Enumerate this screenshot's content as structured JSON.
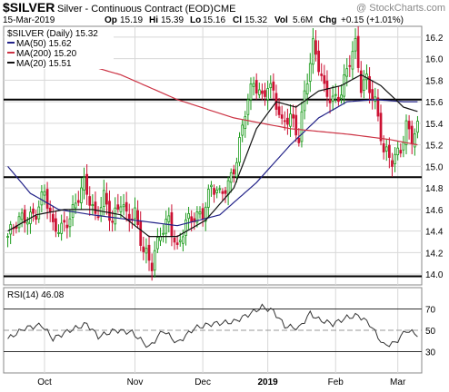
{
  "header": {
    "symbol": "$SILVER",
    "name": "Silver - Continuous Contract (EOD)",
    "exchange": "CME",
    "watermark": "@ StockCharts.com",
    "date": "15-Mar-2019",
    "quote": {
      "op_label": "Op",
      "op": "15.19",
      "hi_label": "Hi",
      "hi": "15.39",
      "lo_label": "Lo",
      "lo": "15.16",
      "cl_label": "Cl",
      "cl": "15.32",
      "vol_label": "Vol",
      "vol": "5.6M",
      "chg_label": "Chg",
      "chg": "+0.15 (+1.01%)"
    }
  },
  "legend": {
    "main": "$SILVER (Daily) 15.32",
    "ma50": "MA(50) 15.62",
    "ma200": "MA(200) 15.20",
    "ma20": "MA(20) 15.51"
  },
  "rsi_legend": "RSI(14) 46.08",
  "colors": {
    "up": "#1a9a1a",
    "down": "#cc1133",
    "ma50": "#222288",
    "ma200": "#cc3344",
    "ma20": "#111111",
    "rsi_line": "#333333",
    "grid": "#d8d8d8",
    "hline": "#000000"
  },
  "chart_data": [
    {
      "type": "candlestick",
      "title": "$SILVER Silver - Continuous Contract (EOD)",
      "x_labels": [
        "Oct",
        "Nov",
        "Dec",
        "2019",
        "Feb",
        "Mar"
      ],
      "y_ticks": [
        14.0,
        14.2,
        14.4,
        14.6,
        14.8,
        15.0,
        15.2,
        15.4,
        15.6,
        15.8,
        16.0,
        16.2
      ],
      "ylim": [
        13.9,
        16.3
      ],
      "grid": true,
      "horizontal_lines": [
        15.62,
        14.9,
        13.98
      ],
      "anchors": [
        {
          "d": 0,
          "v": 14.35
        },
        {
          "d": 5,
          "v": 14.5
        },
        {
          "d": 10,
          "v": 14.6
        },
        {
          "d": 13,
          "v": 14.75
        },
        {
          "d": 16,
          "v": 14.4
        },
        {
          "d": 19,
          "v": 14.45
        },
        {
          "d": 23,
          "v": 14.6
        },
        {
          "d": 27,
          "v": 14.8
        },
        {
          "d": 31,
          "v": 14.55
        },
        {
          "d": 34,
          "v": 14.75
        },
        {
          "d": 37,
          "v": 14.45
        },
        {
          "d": 40,
          "v": 14.65
        },
        {
          "d": 42,
          "v": 14.55
        },
        {
          "d": 45,
          "v": 14.6
        },
        {
          "d": 48,
          "v": 14.2
        },
        {
          "d": 51,
          "v": 14.05
        },
        {
          "d": 54,
          "v": 14.4
        },
        {
          "d": 57,
          "v": 14.55
        },
        {
          "d": 60,
          "v": 14.2
        },
        {
          "d": 63,
          "v": 14.45
        },
        {
          "d": 66,
          "v": 14.55
        },
        {
          "d": 69,
          "v": 14.6
        },
        {
          "d": 72,
          "v": 14.8
        },
        {
          "d": 75,
          "v": 14.7
        },
        {
          "d": 78,
          "v": 14.85
        },
        {
          "d": 81,
          "v": 15.1
        },
        {
          "d": 84,
          "v": 15.5
        },
        {
          "d": 87,
          "v": 15.75
        },
        {
          "d": 90,
          "v": 15.65
        },
        {
          "d": 92,
          "v": 15.8
        },
        {
          "d": 94,
          "v": 15.7
        },
        {
          "d": 97,
          "v": 15.35
        },
        {
          "d": 100,
          "v": 15.45
        },
        {
          "d": 103,
          "v": 15.3
        },
        {
          "d": 105,
          "v": 15.7
        },
        {
          "d": 108,
          "v": 16.1
        },
        {
          "d": 110,
          "v": 15.9
        },
        {
          "d": 112,
          "v": 15.7
        },
        {
          "d": 115,
          "v": 15.65
        },
        {
          "d": 118,
          "v": 15.7
        },
        {
          "d": 121,
          "v": 15.95
        },
        {
          "d": 123,
          "v": 16.1
        },
        {
          "d": 125,
          "v": 15.75
        },
        {
          "d": 127,
          "v": 15.85
        },
        {
          "d": 130,
          "v": 15.6
        },
        {
          "d": 133,
          "v": 15.1
        },
        {
          "d": 136,
          "v": 15.05
        },
        {
          "d": 139,
          "v": 15.2
        },
        {
          "d": 141,
          "v": 15.4
        },
        {
          "d": 143,
          "v": 15.25
        },
        {
          "d": 145,
          "v": 15.32
        }
      ],
      "series": [
        {
          "name": "MA(50) 15.62",
          "points": [
            {
              "d": 0,
              "v": 15.0
            },
            {
              "d": 8,
              "v": 14.75
            },
            {
              "d": 18,
              "v": 14.6
            },
            {
              "d": 30,
              "v": 14.55
            },
            {
              "d": 45,
              "v": 14.5
            },
            {
              "d": 60,
              "v": 14.45
            },
            {
              "d": 75,
              "v": 14.55
            },
            {
              "d": 88,
              "v": 14.85
            },
            {
              "d": 100,
              "v": 15.2
            },
            {
              "d": 110,
              "v": 15.45
            },
            {
              "d": 120,
              "v": 15.6
            },
            {
              "d": 130,
              "v": 15.62
            },
            {
              "d": 140,
              "v": 15.6
            },
            {
              "d": 145,
              "v": 15.6
            }
          ]
        },
        {
          "name": "MA(200) 15.20",
          "points": [
            {
              "d": 0,
              "v": 16.05
            },
            {
              "d": 20,
              "v": 16.0
            },
            {
              "d": 40,
              "v": 15.85
            },
            {
              "d": 60,
              "v": 15.62
            },
            {
              "d": 80,
              "v": 15.45
            },
            {
              "d": 100,
              "v": 15.35
            },
            {
              "d": 120,
              "v": 15.3
            },
            {
              "d": 135,
              "v": 15.25
            },
            {
              "d": 145,
              "v": 15.2
            }
          ]
        },
        {
          "name": "MA(20) 15.51",
          "points": [
            {
              "d": 0,
              "v": 14.4
            },
            {
              "d": 10,
              "v": 14.55
            },
            {
              "d": 20,
              "v": 14.6
            },
            {
              "d": 30,
              "v": 14.6
            },
            {
              "d": 40,
              "v": 14.55
            },
            {
              "d": 50,
              "v": 14.35
            },
            {
              "d": 60,
              "v": 14.35
            },
            {
              "d": 70,
              "v": 14.5
            },
            {
              "d": 80,
              "v": 14.8
            },
            {
              "d": 88,
              "v": 15.35
            },
            {
              "d": 95,
              "v": 15.6
            },
            {
              "d": 102,
              "v": 15.55
            },
            {
              "d": 110,
              "v": 15.7
            },
            {
              "d": 118,
              "v": 15.75
            },
            {
              "d": 125,
              "v": 15.85
            },
            {
              "d": 132,
              "v": 15.75
            },
            {
              "d": 140,
              "v": 15.55
            },
            {
              "d": 145,
              "v": 15.51
            }
          ]
        }
      ]
    },
    {
      "type": "line",
      "title": "RSI(14) 46.08",
      "x_labels": [
        "Oct",
        "Nov",
        "Dec",
        "2019",
        "Feb",
        "Mar"
      ],
      "y_ticks": [
        30,
        50,
        70
      ],
      "ylim": [
        10,
        90
      ],
      "reference_lines": [
        30,
        50,
        70
      ],
      "series": [
        {
          "name": "RSI(14) 46.08",
          "points": [
            {
              "d": 0,
              "v": 42
            },
            {
              "d": 6,
              "v": 52
            },
            {
              "d": 12,
              "v": 55
            },
            {
              "d": 16,
              "v": 42
            },
            {
              "d": 22,
              "v": 50
            },
            {
              "d": 28,
              "v": 56
            },
            {
              "d": 32,
              "v": 44
            },
            {
              "d": 38,
              "v": 50
            },
            {
              "d": 44,
              "v": 48
            },
            {
              "d": 50,
              "v": 34
            },
            {
              "d": 55,
              "v": 50
            },
            {
              "d": 60,
              "v": 38
            },
            {
              "d": 66,
              "v": 52
            },
            {
              "d": 72,
              "v": 56
            },
            {
              "d": 80,
              "v": 58
            },
            {
              "d": 86,
              "v": 66
            },
            {
              "d": 90,
              "v": 72
            },
            {
              "d": 94,
              "v": 68
            },
            {
              "d": 98,
              "v": 54
            },
            {
              "d": 103,
              "v": 52
            },
            {
              "d": 107,
              "v": 66
            },
            {
              "d": 110,
              "v": 60
            },
            {
              "d": 115,
              "v": 56
            },
            {
              "d": 120,
              "v": 62
            },
            {
              "d": 124,
              "v": 64
            },
            {
              "d": 128,
              "v": 56
            },
            {
              "d": 133,
              "v": 36
            },
            {
              "d": 137,
              "v": 38
            },
            {
              "d": 141,
              "v": 50
            },
            {
              "d": 145,
              "v": 46
            }
          ]
        }
      ]
    }
  ]
}
